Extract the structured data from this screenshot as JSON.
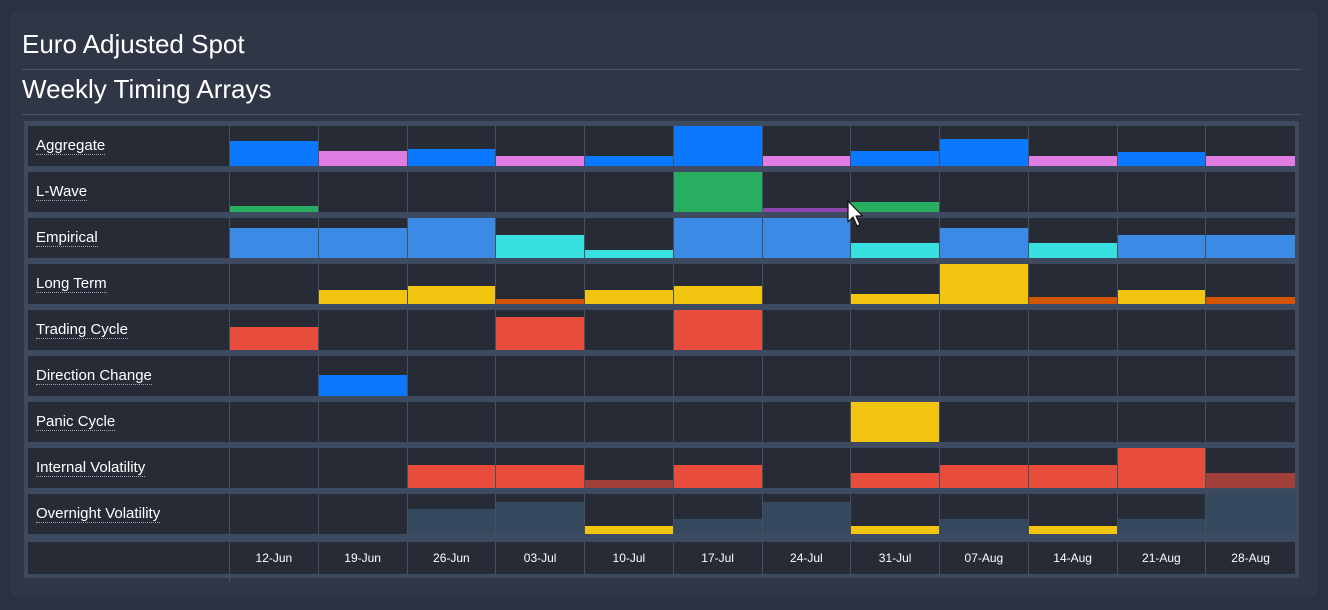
{
  "header": {
    "title": "Euro Adjusted Spot",
    "subtitle": "Weekly Timing Arrays"
  },
  "columns": [
    "12-Jun",
    "19-Jun",
    "26-Jun",
    "03-Jul",
    "10-Jul",
    "17-Jul",
    "24-Jul",
    "31-Jul",
    "07-Aug",
    "14-Aug",
    "21-Aug",
    "28-Aug"
  ],
  "colors": {
    "blue": "#0a79ff",
    "pink": "#e07de3",
    "green": "#27ae60",
    "purple": "#8e44ad",
    "steel": "#3a8ae6",
    "cyan": "#39e0e0",
    "yellow": "#f1c40f",
    "orange": "#d35400",
    "red": "#e74c3c",
    "darkred": "#a13f3b",
    "slate": "#34495e",
    "panel": "#2f3646",
    "row_bg": "#272b36"
  },
  "rows": [
    {
      "label": "Aggregate",
      "cells": [
        [
          0.62,
          "blue"
        ],
        [
          0.38,
          "pink"
        ],
        [
          0.43,
          "blue"
        ],
        [
          0.26,
          "pink"
        ],
        [
          0.26,
          "blue"
        ],
        [
          1.0,
          "blue"
        ],
        [
          0.24,
          "pink"
        ],
        [
          0.38,
          "blue"
        ],
        [
          0.67,
          "blue"
        ],
        [
          0.24,
          "pink"
        ],
        [
          0.36,
          "blue"
        ],
        [
          0.24,
          "pink"
        ]
      ]
    },
    {
      "label": "L-Wave",
      "cells": [
        [
          0.14,
          "green"
        ],
        [
          0,
          ""
        ],
        [
          0,
          ""
        ],
        [
          0,
          ""
        ],
        [
          0,
          ""
        ],
        [
          1.0,
          "green"
        ],
        [
          0.1,
          "purple"
        ],
        [
          0.24,
          "green"
        ],
        [
          0,
          ""
        ],
        [
          0,
          ""
        ],
        [
          0,
          ""
        ],
        [
          0,
          ""
        ]
      ]
    },
    {
      "label": "Empirical",
      "cells": [
        [
          0.76,
          "steel"
        ],
        [
          0.76,
          "steel"
        ],
        [
          1.0,
          "steel"
        ],
        [
          0.57,
          "cyan"
        ],
        [
          0.19,
          "cyan"
        ],
        [
          1.0,
          "steel"
        ],
        [
          1.0,
          "steel"
        ],
        [
          0.38,
          "cyan"
        ],
        [
          0.76,
          "steel"
        ],
        [
          0.38,
          "cyan"
        ],
        [
          0.57,
          "steel"
        ],
        [
          0.57,
          "steel"
        ]
      ]
    },
    {
      "label": "Long Term",
      "cells": [
        [
          0,
          ""
        ],
        [
          0.36,
          "yellow"
        ],
        [
          0.45,
          "yellow"
        ],
        [
          0.12,
          "orange"
        ],
        [
          0.36,
          "yellow"
        ],
        [
          0.45,
          "yellow"
        ],
        [
          0,
          ""
        ],
        [
          0.24,
          "yellow"
        ],
        [
          1.0,
          "yellow"
        ],
        [
          0.17,
          "orange"
        ],
        [
          0.36,
          "yellow"
        ],
        [
          0.17,
          "orange"
        ]
      ]
    },
    {
      "label": "Trading Cycle",
      "cells": [
        [
          0.57,
          "red"
        ],
        [
          0,
          ""
        ],
        [
          0,
          ""
        ],
        [
          0.83,
          "red"
        ],
        [
          0,
          ""
        ],
        [
          1.0,
          "red"
        ],
        [
          0,
          ""
        ],
        [
          0,
          ""
        ],
        [
          0,
          ""
        ],
        [
          0,
          ""
        ],
        [
          0,
          ""
        ],
        [
          0,
          ""
        ]
      ]
    },
    {
      "label": "Direction Change",
      "cells": [
        [
          0,
          ""
        ],
        [
          0.52,
          "blue"
        ],
        [
          0,
          ""
        ],
        [
          0,
          ""
        ],
        [
          0,
          ""
        ],
        [
          0,
          ""
        ],
        [
          0,
          ""
        ],
        [
          0,
          ""
        ],
        [
          0,
          ""
        ],
        [
          0,
          ""
        ],
        [
          0,
          ""
        ],
        [
          0,
          ""
        ]
      ]
    },
    {
      "label": "Panic Cycle",
      "cells": [
        [
          0,
          ""
        ],
        [
          0,
          ""
        ],
        [
          0,
          ""
        ],
        [
          0,
          ""
        ],
        [
          0,
          ""
        ],
        [
          0,
          ""
        ],
        [
          0,
          ""
        ],
        [
          1.0,
          "yellow"
        ],
        [
          0,
          ""
        ],
        [
          0,
          ""
        ],
        [
          0,
          ""
        ],
        [
          0,
          ""
        ]
      ]
    },
    {
      "label": "Internal Volatility",
      "cells": [
        [
          0,
          ""
        ],
        [
          0,
          ""
        ],
        [
          0.57,
          "red"
        ],
        [
          0.57,
          "red"
        ],
        [
          0.19,
          "darkred"
        ],
        [
          0.57,
          "red"
        ],
        [
          0,
          ""
        ],
        [
          0.38,
          "red"
        ],
        [
          0.57,
          "red"
        ],
        [
          0.57,
          "red"
        ],
        [
          1.0,
          "red"
        ],
        [
          0.38,
          "darkred"
        ]
      ]
    },
    {
      "label": "Overnight Volatility",
      "cells": [
        [
          0,
          ""
        ],
        [
          0,
          ""
        ],
        [
          0.62,
          "slate"
        ],
        [
          0.81,
          "slate"
        ],
        [
          0.19,
          "yellow"
        ],
        [
          0.38,
          "slate"
        ],
        [
          0.81,
          "slate"
        ],
        [
          0.19,
          "yellow"
        ],
        [
          0.38,
          "slate"
        ],
        [
          0.19,
          "yellow"
        ],
        [
          0.38,
          "slate"
        ],
        [
          1.0,
          "slate"
        ]
      ]
    }
  ]
}
